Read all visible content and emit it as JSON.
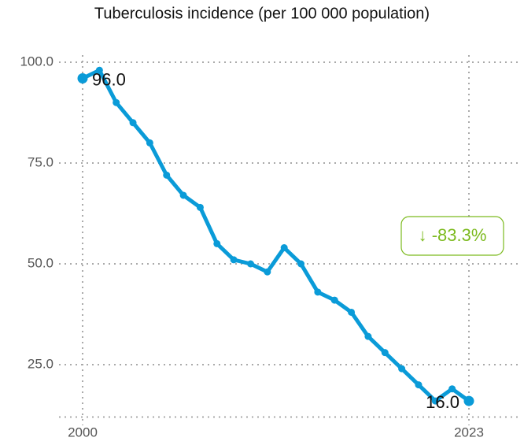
{
  "chart_data": {
    "type": "line",
    "title": "Tuberculosis incidence (per 100 000 population)",
    "x": [
      2000,
      2001,
      2002,
      2003,
      2004,
      2005,
      2006,
      2007,
      2008,
      2009,
      2010,
      2011,
      2012,
      2013,
      2014,
      2015,
      2016,
      2017,
      2018,
      2019,
      2020,
      2021,
      2022,
      2023
    ],
    "series": [
      {
        "name": "Tuberculosis incidence",
        "color": "#0a9bd8",
        "values": [
          96,
          98,
          90,
          85,
          80,
          72,
          67,
          64,
          55,
          51,
          50,
          48,
          54,
          50,
          43,
          41,
          38,
          32,
          28,
          24,
          20,
          16,
          19,
          16
        ],
        "value_labels": [
          "96.0",
          null,
          null,
          null,
          null,
          null,
          null,
          null,
          null,
          null,
          null,
          null,
          null,
          null,
          null,
          null,
          null,
          null,
          null,
          null,
          null,
          null,
          null,
          "16.0"
        ]
      }
    ],
    "annotation": {
      "text": "↓ -83.3%",
      "color": "#7cba1e"
    },
    "xlim": [
      2000,
      2023
    ],
    "xticks": [
      2000,
      2023
    ],
    "ylim": [
      12,
      102
    ],
    "yticks": [
      {
        "value": 25,
        "label": "25.0"
      },
      {
        "value": 50,
        "label": "50.0"
      },
      {
        "value": 75,
        "label": "75.0"
      },
      {
        "value": 100,
        "label": "100.0"
      }
    ],
    "grid": true
  }
}
